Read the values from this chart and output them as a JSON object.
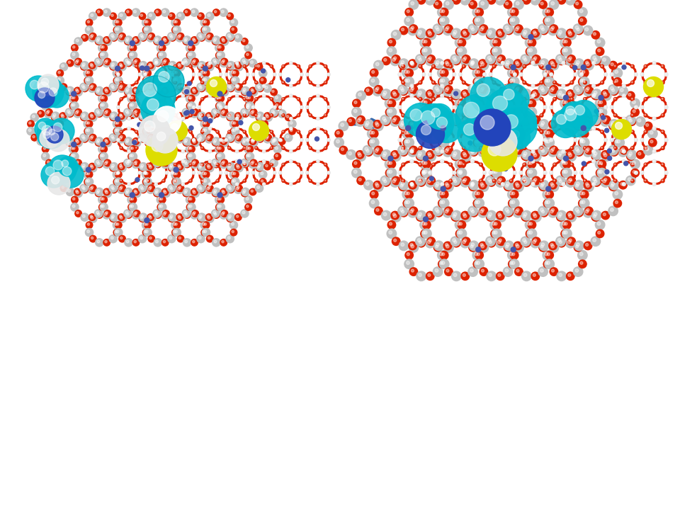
{
  "background_color": "#ffffff",
  "fig_width": 9.6,
  "fig_height": 7.2,
  "dpi": 100,
  "colors": {
    "red_bond": "#dd2200",
    "white_atom": "#e8e8e8",
    "gray_atom": "#c0c0c0",
    "blue_purple": "#4455aa",
    "cyan": "#00bbcc",
    "cyan_dark": "#009aaa",
    "yellow": "#dddd00",
    "yellow_dark": "#aaaa00",
    "blue": "#2244bb",
    "blue_dark": "#112299",
    "white": "#ffffff",
    "arrow_color": "#3366aa"
  }
}
